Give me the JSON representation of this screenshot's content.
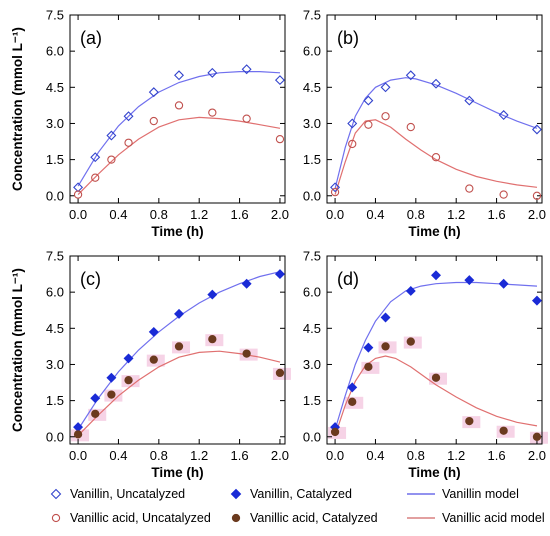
{
  "colors": {
    "vanillin": "#3344cc",
    "vanillic": "#c0504d",
    "vanillin_line": "#7070ee",
    "vanillic_line": "#e07070",
    "vanillic_filled": "#6b3a1e",
    "highlight": "#f6d3e6"
  },
  "legend": {
    "items": [
      {
        "key": "van_unc",
        "label": "Vanillin, Uncatalyzed",
        "marker": "open-diamond",
        "color": "#3344cc"
      },
      {
        "key": "van_cat",
        "label": "Vanillin, Catalyzed",
        "marker": "filled-diamond",
        "color": "#1a2bd6"
      },
      {
        "key": "van_model",
        "label": "Vanillin model",
        "marker": "line",
        "color": "#6f6fea"
      },
      {
        "key": "vac_unc",
        "label": "Vanillic acid, Uncatalyzed",
        "marker": "open-circle",
        "color": "#c0504d"
      },
      {
        "key": "vac_cat",
        "label": "Vanillic acid, Catalyzed",
        "marker": "filled-circle",
        "color": "#6b3a1e"
      },
      {
        "key": "vac_model",
        "label": "Vanillic acid model",
        "marker": "line",
        "color": "#d98080"
      }
    ]
  },
  "chart_data": [
    {
      "panel": "(a)",
      "type": "scatter",
      "xlabel": "Time (h)",
      "ylabel": "Concentration (mmol L⁻¹)",
      "xlim": [
        -0.08,
        2.05
      ],
      "ylim": [
        -0.3,
        7.5
      ],
      "xticks": [
        "0.0",
        "0.4",
        "0.8",
        "1.2",
        "1.6",
        "2.0"
      ],
      "yticks": [
        "0.0",
        "1.5",
        "3.0",
        "4.5",
        "6.0",
        "7.5"
      ],
      "series": [
        {
          "name": "Vanillin, Uncatalyzed",
          "marker": "open-diamond",
          "x": [
            0,
            0.17,
            0.33,
            0.5,
            0.75,
            1.0,
            1.33,
            1.67,
            2.0
          ],
          "y": [
            0.35,
            1.6,
            2.5,
            3.3,
            4.3,
            5.0,
            5.1,
            5.25,
            4.8
          ]
        },
        {
          "name": "Vanillic acid, Uncatalyzed",
          "marker": "open-circle",
          "x": [
            0,
            0.17,
            0.33,
            0.5,
            0.75,
            1.0,
            1.33,
            1.67,
            2.0
          ],
          "y": [
            0.05,
            0.75,
            1.5,
            2.2,
            3.1,
            3.75,
            3.45,
            3.2,
            2.35
          ]
        }
      ],
      "models": [
        {
          "name": "Vanillin model",
          "x": [
            0,
            0.2,
            0.4,
            0.6,
            0.8,
            1.0,
            1.2,
            1.4,
            1.6,
            1.8,
            2.0
          ],
          "y": [
            0.4,
            1.8,
            2.9,
            3.7,
            4.3,
            4.7,
            4.95,
            5.1,
            5.15,
            5.15,
            5.1
          ]
        },
        {
          "name": "Vanillic acid model",
          "x": [
            0,
            0.2,
            0.4,
            0.6,
            0.8,
            1.0,
            1.2,
            1.4,
            1.6,
            1.8,
            2.0
          ],
          "y": [
            0.05,
            0.9,
            1.7,
            2.35,
            2.85,
            3.15,
            3.25,
            3.2,
            3.1,
            2.95,
            2.8
          ]
        }
      ]
    },
    {
      "panel": "(b)",
      "type": "scatter",
      "xlabel": "Time (h)",
      "ylabel": "",
      "xlim": [
        -0.08,
        2.05
      ],
      "ylim": [
        -0.3,
        7.5
      ],
      "xticks": [
        "0.0",
        "0.4",
        "0.8",
        "1.2",
        "1.6",
        "2.0"
      ],
      "yticks": [
        "0.0",
        "1.5",
        "3.0",
        "4.5",
        "6.0",
        "7.5"
      ],
      "series": [
        {
          "name": "Vanillin, Uncatalyzed",
          "marker": "open-diamond",
          "x": [
            0,
            0.17,
            0.33,
            0.5,
            0.75,
            1.0,
            1.33,
            1.67,
            2.0
          ],
          "y": [
            0.35,
            3.0,
            3.95,
            4.5,
            5.0,
            4.65,
            3.95,
            3.35,
            2.75
          ]
        },
        {
          "name": "Vanillic acid, Uncatalyzed",
          "marker": "open-circle",
          "x": [
            0,
            0.17,
            0.33,
            0.5,
            0.75,
            1.0,
            1.33,
            1.67,
            2.0
          ],
          "y": [
            0.15,
            2.15,
            2.95,
            3.3,
            2.85,
            1.6,
            0.3,
            0.05,
            0.0
          ]
        }
      ],
      "models": [
        {
          "name": "Vanillin model",
          "x": [
            0,
            0.1,
            0.2,
            0.3,
            0.4,
            0.55,
            0.7,
            0.8,
            1.0,
            1.2,
            1.4,
            1.6,
            1.8,
            2.0
          ],
          "y": [
            0.3,
            2.0,
            3.3,
            4.05,
            4.5,
            4.8,
            4.9,
            4.85,
            4.6,
            4.25,
            3.85,
            3.45,
            3.1,
            2.8
          ]
        },
        {
          "name": "Vanillic acid model",
          "x": [
            0,
            0.1,
            0.2,
            0.3,
            0.4,
            0.55,
            0.7,
            0.85,
            1.0,
            1.2,
            1.4,
            1.6,
            1.8,
            2.0
          ],
          "y": [
            0.05,
            1.4,
            2.6,
            3.1,
            3.15,
            2.85,
            2.35,
            1.9,
            1.5,
            1.1,
            0.8,
            0.6,
            0.45,
            0.35
          ]
        }
      ]
    },
    {
      "panel": "(c)",
      "type": "scatter",
      "xlabel": "Time (h)",
      "ylabel": "Concentration (mmol L⁻¹)",
      "xlim": [
        -0.08,
        2.05
      ],
      "ylim": [
        -0.3,
        7.5
      ],
      "xticks": [
        "0.0",
        "0.4",
        "0.8",
        "1.2",
        "1.6",
        "2.0"
      ],
      "yticks": [
        "0.0",
        "1.5",
        "3.0",
        "4.5",
        "6.0",
        "7.5"
      ],
      "series": [
        {
          "name": "Vanillin, Catalyzed",
          "marker": "filled-diamond",
          "x": [
            0,
            0.17,
            0.33,
            0.5,
            0.75,
            1.0,
            1.33,
            1.67,
            2.0
          ],
          "y": [
            0.4,
            1.6,
            2.45,
            3.25,
            4.35,
            5.1,
            5.9,
            6.35,
            6.75
          ]
        },
        {
          "name": "Vanillic acid, Catalyzed",
          "marker": "filled-circle",
          "x": [
            0,
            0.17,
            0.33,
            0.5,
            0.75,
            1.0,
            1.33,
            1.67,
            2.0
          ],
          "y": [
            0.1,
            0.95,
            1.75,
            2.35,
            3.2,
            3.75,
            4.05,
            3.45,
            2.65
          ]
        }
      ],
      "models": [
        {
          "name": "Vanillin model",
          "x": [
            0,
            0.2,
            0.4,
            0.6,
            0.8,
            1.0,
            1.2,
            1.4,
            1.6,
            1.8,
            2.0
          ],
          "y": [
            0.3,
            1.6,
            2.7,
            3.6,
            4.35,
            5.0,
            5.55,
            6.0,
            6.35,
            6.65,
            6.85
          ]
        },
        {
          "name": "Vanillic acid model",
          "x": [
            0,
            0.2,
            0.4,
            0.6,
            0.8,
            1.0,
            1.2,
            1.4,
            1.6,
            1.8,
            2.0
          ],
          "y": [
            0.05,
            0.9,
            1.7,
            2.35,
            2.9,
            3.3,
            3.5,
            3.55,
            3.45,
            3.3,
            3.1
          ]
        }
      ]
    },
    {
      "panel": "(d)",
      "type": "scatter",
      "xlabel": "Time (h)",
      "ylabel": "",
      "xlim": [
        -0.08,
        2.05
      ],
      "ylim": [
        -0.3,
        7.5
      ],
      "xticks": [
        "0.0",
        "0.4",
        "0.8",
        "1.2",
        "1.6",
        "2.0"
      ],
      "yticks": [
        "0.0",
        "1.5",
        "3.0",
        "4.5",
        "6.0",
        "7.5"
      ],
      "series": [
        {
          "name": "Vanillin, Catalyzed",
          "marker": "filled-diamond",
          "x": [
            0,
            0.17,
            0.33,
            0.5,
            0.75,
            1.0,
            1.33,
            1.67,
            2.0
          ],
          "y": [
            0.4,
            2.05,
            3.7,
            4.95,
            6.05,
            6.7,
            6.5,
            6.35,
            5.65
          ]
        },
        {
          "name": "Vanillic acid, Catalyzed",
          "marker": "filled-circle",
          "x": [
            0,
            0.17,
            0.33,
            0.5,
            0.75,
            1.0,
            1.33,
            1.67,
            2.0
          ],
          "y": [
            0.2,
            1.45,
            2.9,
            3.75,
            3.95,
            2.45,
            0.65,
            0.25,
            0.0
          ]
        }
      ],
      "models": [
        {
          "name": "Vanillin model",
          "x": [
            0,
            0.1,
            0.2,
            0.3,
            0.4,
            0.55,
            0.7,
            0.85,
            1.0,
            1.2,
            1.4,
            1.6,
            1.8,
            2.0
          ],
          "y": [
            0.3,
            1.7,
            3.0,
            4.0,
            4.8,
            5.6,
            6.05,
            6.25,
            6.35,
            6.4,
            6.4,
            6.35,
            6.3,
            6.25
          ]
        },
        {
          "name": "Vanillic acid model",
          "x": [
            0,
            0.1,
            0.2,
            0.3,
            0.4,
            0.5,
            0.6,
            0.75,
            0.9,
            1.0,
            1.2,
            1.4,
            1.6,
            1.8,
            2.0
          ],
          "y": [
            0.05,
            1.3,
            2.3,
            2.95,
            3.25,
            3.35,
            3.25,
            2.9,
            2.45,
            2.15,
            1.65,
            1.2,
            0.85,
            0.6,
            0.45
          ]
        }
      ]
    }
  ]
}
